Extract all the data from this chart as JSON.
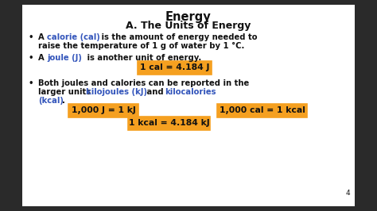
{
  "title": "Energy",
  "subtitle": "A. The Units of Energy",
  "bg_color": "#ffffff",
  "outer_bg": "#2a2a2a",
  "orange": "#F5A020",
  "blue": "#3355BB",
  "black": "#111111",
  "slide_number": "4",
  "box1": "1 cal = 4.184 J",
  "box2": "1,000 J = 1 kJ",
  "box3": "1,000 cal = 1 kcal",
  "box4": "1 kcal = 4.184 kJ"
}
